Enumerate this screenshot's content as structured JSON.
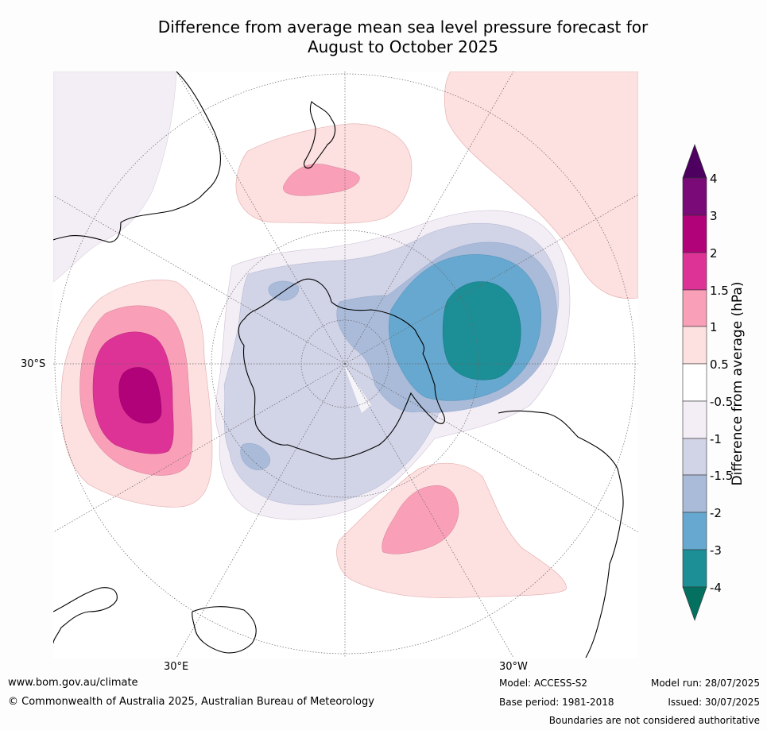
{
  "title_line1": "Difference from average mean sea level pressure forecast for",
  "title_line2": "August to October 2025",
  "map_labels": {
    "lat_label": "30°S",
    "lon_label_left": "30°E",
    "lon_label_right": "30°W"
  },
  "colorbar": {
    "label": "Difference from average (hPa)",
    "ticks": [
      "4",
      "3",
      "2",
      "1.5",
      "1",
      "0.5",
      "-0.5",
      "-1",
      "-1.5",
      "-2",
      "-3",
      "-4"
    ],
    "colors": {
      "above_4": "#4d0060",
      "3_to_4": "#7a0a78",
      "2_to_3": "#b10279",
      "1.5_to_2": "#dd3397",
      "1_to_1.5": "#f9a0b8",
      "0.5_to_1": "#fde0e0",
      "-0.5_to_0.5": "#ffffff",
      "-1_to_-0.5": "#f3eef5",
      "-1.5_to_-1": "#d1d3e6",
      "-2_to_-1.5": "#a9bbd9",
      "-3_to_-2": "#67a8d0",
      "-4_to_-3": "#1c8f96",
      "below_-4": "#04705f"
    }
  },
  "footer": {
    "website": "www.bom.gov.au/climate",
    "copyright": "© Commonwealth of Australia 2025, Australian Bureau of Meteorology",
    "model": "Model: ACCESS-S2",
    "base_period": "Base period: 1981-2018",
    "model_run": "Model run: 28/07/2025",
    "issued": "Issued: 30/07/2025",
    "disclaimer": "Boundaries are not considered authoritative"
  }
}
